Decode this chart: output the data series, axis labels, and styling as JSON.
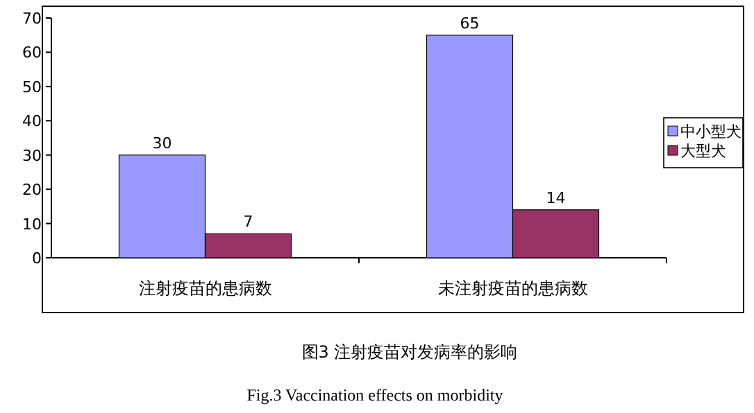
{
  "chart_data": {
    "type": "bar",
    "title": "图3 注射疫苗对发病率的影响",
    "subtitle": "Fig.3 Vaccination effects on morbidity",
    "categories": [
      "注射疫苗的患病数",
      "未注射疫苗的患病数"
    ],
    "series": [
      {
        "name": "中小型犬",
        "color": "#9999ff",
        "values": [
          30,
          65
        ]
      },
      {
        "name": "大型犬",
        "color": "#993366",
        "values": [
          7,
          14
        ]
      }
    ],
    "ylim": [
      0,
      70
    ],
    "yticks": [
      0,
      10,
      20,
      30,
      40,
      50,
      60,
      70
    ],
    "data_labels": true,
    "legend": "right",
    "grid": false
  }
}
